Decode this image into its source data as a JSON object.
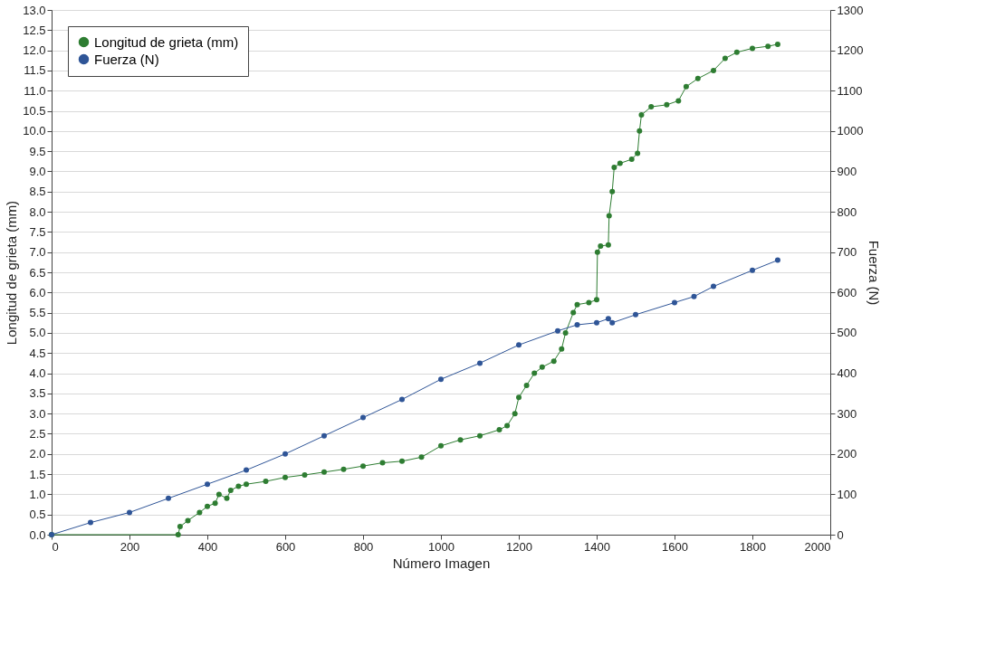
{
  "chart_data": {
    "type": "line",
    "xlabel": "Número Imagen",
    "ylabel": "Longitud de grieta (mm)",
    "y2label": "Fuerza (N)",
    "xlim": [
      0,
      2000
    ],
    "xticks": [
      0,
      200,
      400,
      600,
      800,
      1000,
      1200,
      1400,
      1600,
      1800,
      2000
    ],
    "ylim": [
      0,
      13
    ],
    "yticks": [
      {
        "value": 0,
        "label": "0.0"
      },
      {
        "value": 0.5,
        "label": "0.5"
      },
      {
        "value": 1,
        "label": "1.0"
      },
      {
        "value": 1.5,
        "label": "1.5"
      },
      {
        "value": 2,
        "label": "2.0"
      },
      {
        "value": 2.5,
        "label": "2.5"
      },
      {
        "value": 3,
        "label": "3.0"
      },
      {
        "value": 3.5,
        "label": "3.5"
      },
      {
        "value": 4,
        "label": "4.0"
      },
      {
        "value": 4.5,
        "label": "4.5"
      },
      {
        "value": 5,
        "label": "5.0"
      },
      {
        "value": 5.5,
        "label": "5.5"
      },
      {
        "value": 6,
        "label": "6.0"
      },
      {
        "value": 6.5,
        "label": "6.5"
      },
      {
        "value": 7,
        "label": "7.0"
      },
      {
        "value": 7.5,
        "label": "7.5"
      },
      {
        "value": 8,
        "label": "8.0"
      },
      {
        "value": 8.5,
        "label": "8.5"
      },
      {
        "value": 9,
        "label": "9.0"
      },
      {
        "value": 9.5,
        "label": "9.5"
      },
      {
        "value": 10,
        "label": "10.0"
      },
      {
        "value": 10.5,
        "label": "10.5"
      },
      {
        "value": 11,
        "label": "11.0"
      },
      {
        "value": 11.5,
        "label": "11.5"
      },
      {
        "value": 12,
        "label": "12.0"
      },
      {
        "value": 12.5,
        "label": "12.5"
      },
      {
        "value": 13,
        "label": "13.0"
      }
    ],
    "y2lim": [
      0,
      1300
    ],
    "y2ticks": [
      0,
      100,
      200,
      300,
      400,
      500,
      600,
      700,
      800,
      900,
      1000,
      1100,
      1200,
      1300
    ],
    "grid": "y",
    "legend": "top left",
    "marker": "circle",
    "line_style": "solid",
    "series": [
      {
        "name": "Longitud de grieta (mm)",
        "color": "#2e7d32",
        "x": [
          0,
          325,
          330,
          350,
          380,
          400,
          420,
          430,
          450,
          460,
          480,
          500,
          550,
          600,
          650,
          700,
          750,
          800,
          850,
          900,
          950,
          1000,
          1050,
          1100,
          1150,
          1170,
          1190,
          1200,
          1220,
          1240,
          1260,
          1290,
          1310,
          1320,
          1340,
          1350,
          1380,
          1400,
          1402,
          1410,
          1430,
          1432,
          1440,
          1445,
          1460,
          1490,
          1505,
          1510,
          1515,
          1540,
          1580,
          1610,
          1630,
          1660,
          1700,
          1730,
          1760,
          1800,
          1840,
          1865
        ],
        "values": [
          0,
          0,
          0.2,
          0.35,
          0.55,
          0.7,
          0.78,
          1.0,
          0.9,
          1.1,
          1.2,
          1.25,
          1.32,
          1.42,
          1.48,
          1.55,
          1.62,
          1.7,
          1.78,
          1.82,
          1.92,
          2.2,
          2.35,
          2.45,
          2.6,
          2.7,
          3.0,
          3.4,
          3.7,
          4.0,
          4.15,
          4.3,
          4.6,
          5.0,
          5.5,
          5.7,
          5.75,
          5.82,
          7.0,
          7.15,
          7.18,
          7.9,
          8.5,
          9.1,
          9.2,
          9.3,
          9.45,
          10.0,
          10.4,
          10.6,
          10.65,
          10.75,
          11.1,
          11.3,
          11.5,
          11.8,
          11.95,
          12.05,
          12.1,
          12.15
        ]
      },
      {
        "name": "Fuerza (N)",
        "color": "#2f5597",
        "axis": "y2",
        "x": [
          0,
          100,
          200,
          300,
          400,
          500,
          600,
          700,
          800,
          900,
          1000,
          1100,
          1200,
          1300,
          1350,
          1400,
          1430,
          1440,
          1500,
          1600,
          1650,
          1700,
          1800,
          1865
        ],
        "values": [
          0,
          30,
          55,
          90,
          125,
          160,
          200,
          245,
          290,
          335,
          385,
          425,
          470,
          505,
          520,
          525,
          535,
          525,
          545,
          575,
          590,
          615,
          655,
          680
        ]
      }
    ]
  }
}
